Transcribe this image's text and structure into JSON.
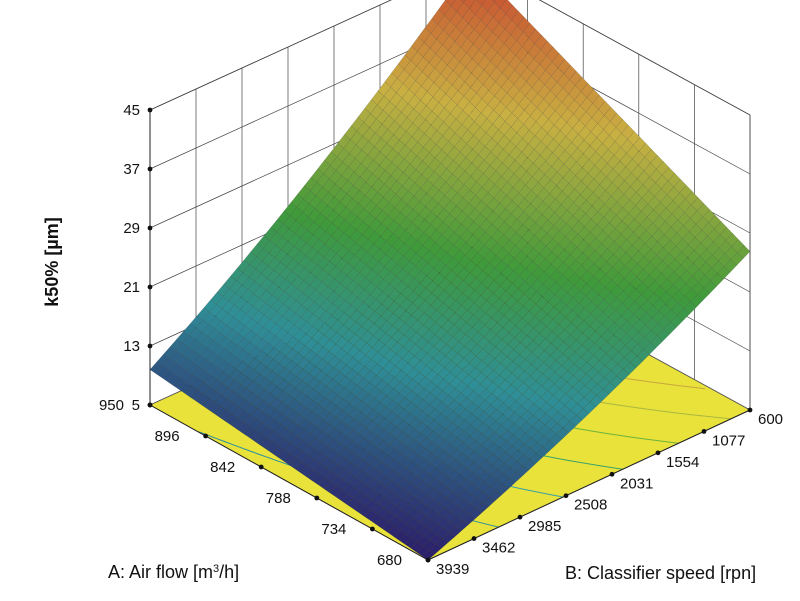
{
  "chart_data": {
    "type": "surface",
    "zlabel": "k50% [µm]",
    "xlabel_prefix": "A: Air flow [m",
    "xlabel_sup": "3",
    "xlabel_suffix": "/h]",
    "ylabel": "B: Classifier speed [rpn]",
    "x_ticks": [
      "680",
      "734",
      "788",
      "842",
      "896",
      "950"
    ],
    "y_ticks": [
      "600",
      "1077",
      "1554",
      "2031",
      "2508",
      "2985",
      "3462",
      "3939"
    ],
    "z_ticks": [
      "5",
      "13",
      "21",
      "29",
      "37",
      "45"
    ],
    "xlim": [
      680,
      950
    ],
    "ylim": [
      600,
      3939
    ],
    "zlim": [
      5,
      45
    ],
    "surface_corners": [
      {
        "air_flow": 950,
        "classifier_speed": 3939,
        "k50": 9.8
      },
      {
        "air_flow": 680,
        "classifier_speed": 3939,
        "k50": 5.0
      },
      {
        "air_flow": 680,
        "classifier_speed": 600,
        "k50": 26.5
      },
      {
        "air_flow": 950,
        "classifier_speed": 600,
        "k50": 45.0
      }
    ],
    "colors": {
      "low": "#2c1d6b",
      "mid_low": "#2f8f98",
      "mid": "#3f9a3a",
      "mid_high": "#c9b042",
      "high": "#c9432f",
      "floor": "#e8e23a",
      "grid": "#444444",
      "mesh": "#1a1a1a"
    },
    "grid": true
  }
}
